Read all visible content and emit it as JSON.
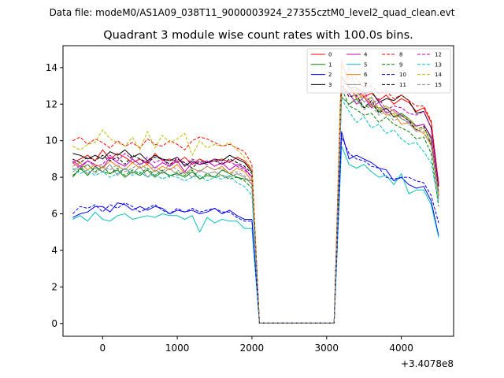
{
  "chart_data": {
    "type": "line",
    "suptitle": "Data file: modeM0/AS1A09_038T11_9000003924_27355cztM0_level2_quad_clean.evt",
    "title": "Quadrant 3 module wise count rates with 100.0s bins.",
    "xlabel": "",
    "ylabel": "",
    "x_offset_label": "+3.4078e8",
    "xlim": [
      -530,
      4700
    ],
    "ylim": [
      -0.7,
      15.2
    ],
    "x_ticks": [
      0,
      1000,
      2000,
      3000,
      4000
    ],
    "x_tick_labels": [
      "0",
      "1000",
      "2000",
      "3000",
      "4000"
    ],
    "y_ticks": [
      0,
      2,
      4,
      6,
      8,
      10,
      12,
      14
    ],
    "y_tick_labels": [
      "0",
      "2",
      "4",
      "6",
      "8",
      "10",
      "12",
      "14"
    ],
    "grid": false,
    "legend_position": "top-right",
    "x": [
      -400,
      -300,
      -200,
      -100,
      0,
      100,
      200,
      300,
      400,
      500,
      600,
      700,
      800,
      900,
      1000,
      1100,
      1200,
      1300,
      1400,
      1500,
      1600,
      1700,
      1800,
      1900,
      2000,
      2100,
      2200,
      2300,
      2400,
      2500,
      2600,
      2700,
      2800,
      2900,
      3000,
      3100,
      3200,
      3300,
      3400,
      3500,
      3600,
      3700,
      3800,
      3900,
      4000,
      4100,
      4200,
      4300,
      4400,
      4500
    ],
    "series": [
      {
        "name": "0",
        "color": "#ff0000",
        "dash": "solid",
        "values": [
          8.8,
          9.0,
          9.2,
          8.9,
          9.5,
          9.0,
          9.3,
          9.1,
          8.8,
          9.0,
          8.7,
          9.3,
          8.9,
          9.0,
          8.8,
          9.1,
          8.7,
          9.0,
          8.8,
          8.9,
          9.0,
          8.8,
          9.1,
          8.9,
          8.4,
          0.03,
          0.03,
          0.03,
          0.03,
          0.03,
          0.03,
          0.03,
          0.03,
          0.03,
          0.03,
          0.03,
          13.0,
          12.6,
          12.8,
          12.4,
          12.6,
          12.2,
          12.5,
          12.0,
          12.3,
          12.1,
          11.6,
          11.8,
          11.0,
          7.6
        ]
      },
      {
        "name": "1",
        "color": "#008000",
        "dash": "solid",
        "values": [
          8.0,
          8.5,
          8.1,
          8.6,
          8.3,
          8.2,
          8.4,
          8.0,
          8.3,
          8.1,
          8.4,
          8.0,
          8.3,
          8.1,
          8.2,
          8.0,
          8.3,
          7.9,
          8.1,
          8.0,
          8.4,
          8.2,
          8.0,
          7.9,
          7.8,
          0.03,
          0.03,
          0.03,
          0.03,
          0.03,
          0.03,
          0.03,
          0.03,
          0.03,
          0.03,
          0.03,
          12.4,
          12.0,
          12.3,
          11.8,
          12.0,
          11.6,
          11.8,
          11.3,
          11.5,
          11.2,
          10.8,
          10.9,
          10.1,
          7.1
        ]
      },
      {
        "name": "2",
        "color": "#0000ff",
        "dash": "solid",
        "values": [
          5.8,
          6.0,
          6.1,
          6.4,
          6.4,
          6.1,
          6.6,
          6.5,
          6.2,
          6.4,
          6.2,
          6.4,
          6.3,
          6.0,
          6.2,
          6.1,
          6.2,
          6.0,
          6.1,
          6.3,
          6.0,
          6.2,
          5.9,
          5.7,
          5.7,
          0.03,
          0.03,
          0.03,
          0.03,
          0.03,
          0.03,
          0.03,
          0.03,
          0.03,
          0.03,
          0.03,
          10.5,
          9.0,
          9.2,
          9.0,
          8.8,
          8.5,
          8.4,
          7.8,
          8.0,
          7.6,
          7.4,
          7.5,
          6.7,
          4.8
        ]
      },
      {
        "name": "3",
        "color": "#000000",
        "dash": "solid",
        "values": [
          9.3,
          9.2,
          9.0,
          9.2,
          9.0,
          9.4,
          9.2,
          9.5,
          9.1,
          9.3,
          8.9,
          9.2,
          9.0,
          8.9,
          9.1,
          8.6,
          8.9,
          8.7,
          8.8,
          9.0,
          8.9,
          9.2,
          9.0,
          8.8,
          8.3,
          0.03,
          0.03,
          0.03,
          0.03,
          0.03,
          0.03,
          0.03,
          0.03,
          0.03,
          0.03,
          0.03,
          13.5,
          12.9,
          12.9,
          12.6,
          12.7,
          12.1,
          12.3,
          12.2,
          12.5,
          12.2,
          11.5,
          11.6,
          10.7,
          7.5
        ]
      },
      {
        "name": "4",
        "color": "#bf00bf",
        "dash": "solid",
        "values": [
          8.9,
          8.6,
          8.9,
          8.7,
          8.5,
          9.1,
          8.8,
          8.6,
          9.0,
          8.7,
          8.9,
          8.5,
          8.8,
          8.6,
          8.9,
          8.3,
          8.8,
          8.7,
          8.9,
          8.6,
          8.8,
          8.4,
          8.7,
          8.5,
          8.0,
          0.03,
          0.03,
          0.03,
          0.03,
          0.03,
          0.03,
          0.03,
          0.03,
          0.03,
          0.03,
          0.03,
          12.7,
          12.6,
          12.0,
          12.4,
          11.8,
          12.1,
          11.5,
          11.7,
          11.4,
          11.1,
          10.8,
          10.9,
          10.2,
          7.2
        ]
      },
      {
        "name": "5",
        "color": "#00bfbf",
        "dash": "solid",
        "values": [
          5.7,
          5.9,
          5.6,
          6.1,
          5.7,
          5.6,
          5.9,
          6.0,
          5.7,
          5.8,
          5.9,
          5.8,
          6.0,
          5.9,
          5.9,
          5.7,
          5.9,
          5.0,
          5.8,
          5.5,
          5.7,
          5.6,
          5.6,
          5.2,
          5.2,
          0.03,
          0.03,
          0.03,
          0.03,
          0.03,
          0.03,
          0.03,
          0.03,
          0.03,
          0.03,
          0.03,
          9.7,
          8.7,
          8.5,
          8.7,
          8.3,
          8.0,
          8.1,
          7.6,
          8.2,
          7.1,
          7.3,
          7.3,
          6.5,
          4.7
        ]
      },
      {
        "name": "6",
        "color": "#ff7f00",
        "dash": "solid",
        "values": [
          8.6,
          8.8,
          8.4,
          8.7,
          8.5,
          8.9,
          8.6,
          8.4,
          8.8,
          8.5,
          8.7,
          8.3,
          8.6,
          8.4,
          8.7,
          8.2,
          8.5,
          8.3,
          8.6,
          8.4,
          8.6,
          8.2,
          8.5,
          8.3,
          7.8,
          0.03,
          0.03,
          0.03,
          0.03,
          0.03,
          0.03,
          0.03,
          0.03,
          0.03,
          0.03,
          0.03,
          14.4,
          13.0,
          12.3,
          12.5,
          11.9,
          11.8,
          11.4,
          11.5,
          10.9,
          11.0,
          10.6,
          10.4,
          9.8,
          7.0
        ]
      },
      {
        "name": "7",
        "color": "#8c8c8c",
        "dash": "solid",
        "values": [
          8.4,
          8.6,
          8.2,
          8.5,
          8.3,
          8.7,
          8.1,
          8.5,
          8.2,
          8.6,
          8.0,
          8.4,
          8.2,
          8.5,
          8.1,
          8.3,
          8.0,
          8.4,
          8.2,
          8.3,
          8.1,
          8.0,
          8.2,
          8.0,
          7.6,
          0.03,
          0.03,
          0.03,
          0.03,
          0.03,
          0.03,
          0.03,
          0.03,
          0.03,
          0.03,
          0.03,
          12.5,
          14.0,
          12.8,
          12.1,
          12.4,
          11.7,
          11.9,
          11.6,
          11.2,
          11.0,
          10.5,
          10.7,
          9.9,
          6.8
        ]
      },
      {
        "name": "8",
        "color": "#ff0000",
        "dash": "dashed",
        "values": [
          10.0,
          10.2,
          9.8,
          10.1,
          9.9,
          9.6,
          10.0,
          9.7,
          9.9,
          9.6,
          10.1,
          9.8,
          9.7,
          10.0,
          9.8,
          9.5,
          10.0,
          10.2,
          10.1,
          9.9,
          9.7,
          9.8,
          9.6,
          9.4,
          8.7,
          0.03,
          0.03,
          0.03,
          0.03,
          0.03,
          0.03,
          0.03,
          0.03,
          0.03,
          0.03,
          0.03,
          14.2,
          13.4,
          13.4,
          12.9,
          13.0,
          12.6,
          12.7,
          12.3,
          12.5,
          12.2,
          11.9,
          11.9,
          11.1,
          7.7
        ]
      },
      {
        "name": "9",
        "color": "#008000",
        "dash": "dashed",
        "values": [
          8.1,
          8.4,
          8.7,
          8.3,
          8.6,
          8.2,
          8.5,
          8.1,
          8.4,
          8.2,
          8.5,
          8.1,
          8.4,
          8.0,
          8.3,
          8.1,
          8.4,
          7.9,
          8.2,
          8.0,
          8.1,
          7.9,
          8.0,
          7.8,
          7.4,
          0.03,
          0.03,
          0.03,
          0.03,
          0.03,
          0.03,
          0.03,
          0.03,
          0.03,
          0.03,
          0.03,
          12.9,
          11.9,
          11.7,
          11.4,
          11.5,
          11.0,
          11.3,
          10.9,
          10.7,
          10.5,
          10.1,
          10.2,
          9.3,
          6.4
        ]
      },
      {
        "name": "10",
        "color": "#0000ff",
        "dash": "dashed",
        "values": [
          6.0,
          6.4,
          6.3,
          6.5,
          6.1,
          6.5,
          6.3,
          6.6,
          6.4,
          6.1,
          6.3,
          6.5,
          6.2,
          6.0,
          6.3,
          6.1,
          6.3,
          6.1,
          6.2,
          6.3,
          6.1,
          6.1,
          5.8,
          5.6,
          5.6,
          0.03,
          0.03,
          0.03,
          0.03,
          0.03,
          0.03,
          0.03,
          0.03,
          0.03,
          0.03,
          0.03,
          10.2,
          9.3,
          9.0,
          8.9,
          8.6,
          8.5,
          8.0,
          7.9,
          8.0,
          8.0,
          7.8,
          7.7,
          7.0,
          5.5
        ]
      },
      {
        "name": "11",
        "color": "#000000",
        "dash": "dashed",
        "values": [
          9.0,
          8.8,
          9.1,
          8.9,
          9.2,
          8.9,
          9.1,
          8.7,
          9.2,
          9.0,
          8.8,
          9.1,
          9.0,
          8.7,
          9.0,
          8.8,
          8.5,
          8.9,
          8.8,
          8.9,
          8.7,
          9.0,
          8.8,
          8.6,
          8.2,
          0.03,
          0.03,
          0.03,
          0.03,
          0.03,
          0.03,
          0.03,
          0.03,
          0.03,
          0.03,
          0.03,
          13.1,
          12.4,
          12.5,
          11.8,
          12.2,
          11.5,
          11.8,
          11.3,
          11.4,
          11.1,
          10.6,
          10.8,
          9.8,
          7.0
        ]
      },
      {
        "name": "12",
        "color": "#bf00bf",
        "dash": "dashed",
        "values": [
          8.8,
          8.5,
          8.9,
          8.6,
          8.7,
          9.2,
          8.9,
          9.3,
          9.0,
          8.7,
          9.1,
          8.8,
          9.0,
          8.6,
          9.1,
          8.7,
          9.0,
          8.8,
          8.7,
          9.0,
          8.7,
          8.9,
          8.6,
          8.4,
          8.0,
          0.03,
          0.03,
          0.03,
          0.03,
          0.03,
          0.03,
          0.03,
          0.03,
          0.03,
          0.03,
          0.03,
          13.2,
          13.0,
          12.4,
          12.7,
          12.0,
          12.3,
          11.7,
          11.9,
          11.8,
          11.5,
          11.4,
          11.6,
          10.7,
          7.6
        ]
      },
      {
        "name": "13",
        "color": "#00bfbf",
        "dash": "dashed",
        "values": [
          8.5,
          8.2,
          8.4,
          8.1,
          8.3,
          8.0,
          8.2,
          8.5,
          8.1,
          8.3,
          8.0,
          8.2,
          7.9,
          8.1,
          8.0,
          7.8,
          8.0,
          8.1,
          7.8,
          8.0,
          7.9,
          8.1,
          7.7,
          7.5,
          7.0,
          0.03,
          0.03,
          0.03,
          0.03,
          0.03,
          0.03,
          0.03,
          0.03,
          0.03,
          0.03,
          0.03,
          12.3,
          11.6,
          11.0,
          11.3,
          10.7,
          10.9,
          10.4,
          10.6,
          10.1,
          9.8,
          9.9,
          9.4,
          8.8,
          6.6
        ]
      },
      {
        "name": "14",
        "color": "#bfbf00",
        "dash": "dashed",
        "values": [
          9.7,
          9.5,
          9.8,
          9.9,
          10.6,
          10.1,
          9.9,
          9.7,
          10.2,
          9.5,
          10.5,
          9.6,
          10.3,
          9.9,
          10.1,
          10.4,
          9.2,
          10.0,
          9.6,
          9.8,
          9.7,
          9.9,
          9.5,
          9.1,
          8.4,
          0.03,
          0.03,
          0.03,
          0.03,
          0.03,
          0.03,
          0.03,
          0.03,
          0.03,
          0.03,
          0.03,
          13.8,
          12.8,
          12.6,
          12.3,
          12.3,
          11.8,
          11.9,
          11.6,
          11.3,
          11.2,
          10.7,
          10.7,
          9.9,
          7.1
        ]
      },
      {
        "name": "15",
        "color": "#8c8c8c",
        "dash": "dashed",
        "values": [
          8.3,
          8.5,
          8.7,
          8.2,
          8.6,
          8.4,
          8.7,
          8.3,
          8.5,
          8.8,
          8.4,
          8.6,
          8.3,
          8.7,
          8.4,
          8.2,
          8.5,
          8.3,
          8.6,
          8.4,
          8.5,
          8.2,
          8.3,
          8.1,
          7.6,
          0.03,
          0.03,
          0.03,
          0.03,
          0.03,
          0.03,
          0.03,
          0.03,
          0.03,
          0.03,
          0.03,
          12.4,
          12.0,
          12.2,
          11.7,
          11.9,
          11.4,
          11.6,
          11.1,
          11.3,
          10.9,
          10.6,
          10.5,
          9.7,
          6.9
        ]
      }
    ]
  }
}
